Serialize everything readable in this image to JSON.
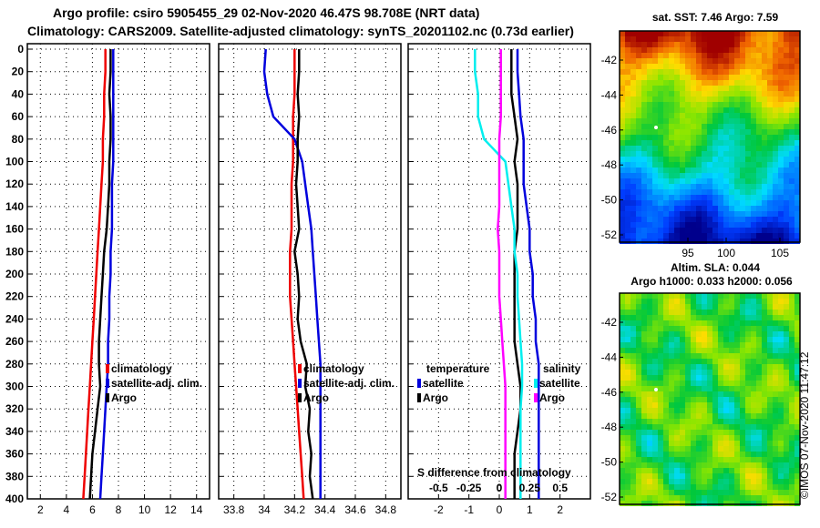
{
  "header": {
    "line1": "Argo profile: csiro 5905455_29 02-Nov-2020 46.47S 98.708E (NRT data)",
    "line2": "Climatology: CARS2009. Satellite-adjusted climatology: synTS_20201102.nc (0.73d earlier)"
  },
  "credit": "©IMOS 07-Nov-2020 11:47:12",
  "colors": {
    "climatology": "#ee0000",
    "satellite": "#0000dd",
    "argo": "#000000",
    "temp_diff": "#ff00ff",
    "sal_diff": "#00eeee"
  },
  "chart_data": [
    {
      "type": "line",
      "name": "temperature-profile",
      "title": "",
      "ylabel": "",
      "ylim": [
        0,
        400
      ],
      "xlim": [
        1,
        15
      ],
      "x_ticks": [
        2,
        4,
        6,
        8,
        10,
        12,
        14
      ],
      "y_ticks": [
        0,
        20,
        40,
        60,
        80,
        100,
        120,
        140,
        160,
        180,
        200,
        220,
        240,
        260,
        280,
        300,
        320,
        340,
        360,
        380,
        400
      ],
      "legend": [
        "climatology",
        "satellite-adj. clim.",
        "Argo"
      ],
      "legend_position": "lower-right",
      "series": [
        {
          "name": "climatology",
          "color": "#ee0000",
          "x": [
            7.0,
            7.0,
            6.9,
            6.9,
            6.8,
            6.8,
            6.7,
            6.6,
            6.5,
            6.4,
            6.3,
            6.2,
            6.1,
            6.0,
            5.9,
            5.8,
            5.7,
            5.6,
            5.5,
            5.4,
            5.3
          ],
          "y": [
            0,
            20,
            40,
            60,
            80,
            100,
            120,
            140,
            160,
            180,
            200,
            220,
            240,
            260,
            280,
            300,
            320,
            340,
            360,
            380,
            400
          ]
        },
        {
          "name": "satellite-adj. clim.",
          "color": "#0000dd",
          "x": [
            7.6,
            7.6,
            7.6,
            7.6,
            7.6,
            7.6,
            7.5,
            7.5,
            7.5,
            7.4,
            7.4,
            7.3,
            7.3,
            7.2,
            7.2,
            7.1,
            7.0,
            6.9,
            6.8,
            6.7,
            6.6
          ],
          "y": [
            0,
            20,
            40,
            60,
            80,
            100,
            120,
            140,
            160,
            180,
            200,
            220,
            240,
            260,
            280,
            300,
            320,
            340,
            360,
            380,
            400
          ]
        },
        {
          "name": "Argo",
          "color": "#000000",
          "x": [
            7.4,
            7.4,
            7.3,
            7.4,
            7.4,
            7.3,
            7.3,
            7.2,
            7.1,
            6.9,
            6.8,
            6.7,
            6.6,
            6.5,
            6.5,
            6.6,
            6.4,
            6.2,
            6.0,
            5.9,
            5.8
          ],
          "y": [
            0,
            20,
            40,
            60,
            80,
            100,
            120,
            140,
            160,
            180,
            200,
            220,
            240,
            260,
            280,
            300,
            320,
            340,
            360,
            380,
            400
          ]
        }
      ]
    },
    {
      "type": "line",
      "name": "salinity-profile",
      "ylim": [
        0,
        400
      ],
      "xlim": [
        33.7,
        34.9
      ],
      "x_ticks": [
        33.8,
        34,
        34.2,
        34.4,
        34.6,
        34.8
      ],
      "legend": [
        "climatology",
        "satellite-adj. clim.",
        "Argo"
      ],
      "legend_position": "lower-right",
      "series": [
        {
          "name": "climatology",
          "color": "#ee0000",
          "x": [
            34.2,
            34.2,
            34.2,
            34.19,
            34.19,
            34.19,
            34.18,
            34.18,
            34.18,
            34.17,
            34.17,
            34.17,
            34.18,
            34.19,
            34.2,
            34.21,
            34.22,
            34.23,
            34.24,
            34.25,
            34.26
          ],
          "y": [
            0,
            20,
            40,
            60,
            80,
            100,
            120,
            140,
            160,
            180,
            200,
            220,
            240,
            260,
            280,
            300,
            320,
            340,
            360,
            380,
            400
          ]
        },
        {
          "name": "satellite-adj. clim.",
          "color": "#0000dd",
          "x": [
            34.01,
            34.0,
            34.02,
            34.06,
            34.2,
            34.25,
            34.27,
            34.29,
            34.31,
            34.32,
            34.33,
            34.34,
            34.35,
            34.36,
            34.37,
            34.37,
            34.37,
            34.37,
            34.37,
            34.37,
            34.37
          ],
          "y": [
            0,
            20,
            40,
            60,
            80,
            100,
            120,
            140,
            160,
            180,
            200,
            220,
            240,
            260,
            280,
            300,
            320,
            340,
            360,
            380,
            400
          ]
        },
        {
          "name": "Argo",
          "color": "#000000",
          "x": [
            34.23,
            34.23,
            34.22,
            34.23,
            34.22,
            34.22,
            34.21,
            34.22,
            34.23,
            34.2,
            34.22,
            34.23,
            34.22,
            34.24,
            34.28,
            34.27,
            34.3,
            34.29,
            34.31,
            34.3,
            34.32
          ],
          "y": [
            0,
            20,
            40,
            60,
            80,
            100,
            120,
            140,
            160,
            180,
            200,
            220,
            240,
            260,
            280,
            300,
            320,
            340,
            360,
            380,
            400
          ]
        }
      ]
    },
    {
      "type": "line",
      "name": "difference-profile",
      "ylim": [
        0,
        400
      ],
      "xlim": [
        -3,
        3
      ],
      "x_ticks": [
        -2,
        -1,
        0,
        1,
        2
      ],
      "secondary_x_label": "S difference from climatology",
      "secondary_x_ticks": [
        "-0.5",
        "-0.25",
        "0",
        "0.25",
        "0.5"
      ],
      "legend_left_title": "temperature",
      "legend_right_title": "salinity",
      "legend_entries": [
        "satellite",
        "Argo"
      ],
      "series": [
        {
          "name": "temperature satellite",
          "color": "#0000dd",
          "x": [
            0.6,
            0.6,
            0.65,
            0.7,
            0.8,
            0.8,
            0.8,
            0.9,
            1.0,
            1.0,
            1.1,
            1.1,
            1.2,
            1.2,
            1.3,
            1.3,
            1.3,
            1.3,
            1.3,
            1.3,
            1.3
          ],
          "y": [
            0,
            20,
            40,
            60,
            80,
            100,
            120,
            140,
            160,
            180,
            200,
            220,
            240,
            260,
            280,
            300,
            320,
            340,
            360,
            380,
            400
          ]
        },
        {
          "name": "temperature Argo",
          "color": "#000000",
          "x": [
            0.4,
            0.4,
            0.4,
            0.5,
            0.6,
            0.5,
            0.6,
            0.6,
            0.6,
            0.5,
            0.5,
            0.5,
            0.5,
            0.5,
            0.6,
            0.7,
            0.7,
            0.6,
            0.5,
            0.5,
            0.5
          ],
          "y": [
            0,
            20,
            40,
            60,
            80,
            100,
            120,
            140,
            160,
            180,
            200,
            220,
            240,
            260,
            280,
            300,
            320,
            340,
            360,
            380,
            400
          ]
        },
        {
          "name": "salinity satellite",
          "color": "#00eeee",
          "x": [
            -0.8,
            -0.8,
            -0.7,
            -0.7,
            -0.5,
            0.2,
            0.3,
            0.4,
            0.5,
            0.5,
            0.6,
            0.6,
            0.65,
            0.7,
            0.75,
            0.75,
            0.7,
            0.7,
            0.7,
            0.7,
            0.7
          ],
          "y": [
            0,
            20,
            40,
            60,
            80,
            100,
            120,
            140,
            160,
            180,
            200,
            220,
            240,
            260,
            280,
            300,
            320,
            340,
            360,
            380,
            400
          ]
        },
        {
          "name": "salinity Argo / temperature climatology diff",
          "color": "#ff00ff",
          "x": [
            0.05,
            0.05,
            0.05,
            0.05,
            0.0,
            0.0,
            0.0,
            0.0,
            -0.05,
            0.0,
            0.0,
            0.0,
            0.05,
            0.1,
            0.15,
            0.2,
            0.2,
            0.2,
            0.2,
            0.2,
            0.2
          ],
          "y": [
            0,
            20,
            40,
            60,
            80,
            100,
            120,
            140,
            160,
            180,
            200,
            220,
            240,
            260,
            280,
            300,
            320,
            340,
            360,
            380,
            400
          ]
        }
      ]
    }
  ],
  "maps": {
    "sst": {
      "title": "sat. SST: 7.46 Argo: 7.59",
      "lon_ticks": [
        "95",
        "100",
        "105"
      ],
      "lat_ticks": [
        "-42",
        "-44",
        "-46",
        "-48",
        "-50",
        "-52"
      ]
    },
    "altimetry": {
      "title_line1": "Altim. SLA: 0.044",
      "title_line2": "Argo h1000: 0.033 h2000: 0.056",
      "lat_ticks": [
        "-42",
        "-44",
        "-46",
        "-48",
        "-50",
        "-52"
      ]
    }
  }
}
